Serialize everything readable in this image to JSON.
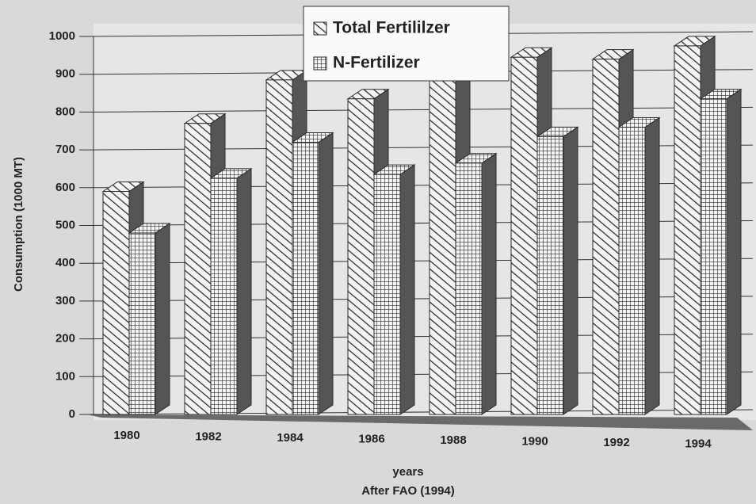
{
  "chart_data": {
    "type": "bar3d",
    "y_label": "Consumption (1000 MT)",
    "x_label": "years",
    "source": "After FAO (1994)",
    "categories": [
      "1980",
      "1982",
      "1984",
      "1986",
      "1988",
      "1990",
      "1992",
      "1994"
    ],
    "series": [
      {
        "name": "Total Fertililzer",
        "color": "#2a2a2a",
        "pattern": "hatch",
        "values": [
          590,
          770,
          885,
          835,
          890,
          945,
          940,
          975
        ]
      },
      {
        "name": "N-Fertilizer",
        "color": "#2a2a2a",
        "pattern": "grid",
        "values": [
          480,
          625,
          720,
          635,
          665,
          735,
          760,
          835
        ]
      }
    ],
    "ylim": [
      0,
      1000
    ],
    "yticks": [
      0,
      100,
      200,
      300,
      400,
      500,
      600,
      700,
      800,
      900,
      1000
    ],
    "grid": true
  }
}
